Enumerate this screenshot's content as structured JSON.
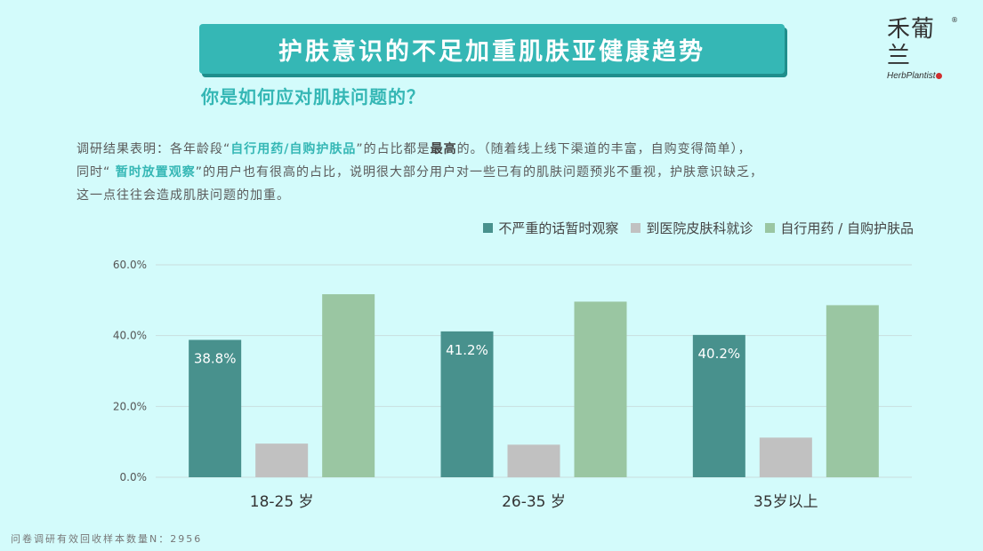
{
  "header": {
    "title": "护肤意识的不足加重肌肤亚健康趋势",
    "subtitle": "你是如何应对肌肤问题的？",
    "logo_mark": "禾葡兰",
    "logo_sub": "HerbPlantist",
    "logo_reg": "®"
  },
  "paragraph": {
    "l1_a": "调研结果表明：各年龄段“",
    "l1_hl": "自行用药/自购护肤品",
    "l1_b": "”的占比都是",
    "l1_bold": "最高",
    "l1_c": "的。（随着线上线下渠道的丰富，自购变得简单），",
    "l2_a": "同时“  ",
    "l2_hl": "暂时放置观察",
    "l2_b": "”的用户也有很高的占比，说明很大部分用户对一些已有的肌肤问题预兆不重视，护肤意识缺乏，",
    "l3": "这一点往往会造成肌肤问题的加重。"
  },
  "footer": "问卷调研有效回收样本数量N：2956",
  "colors": {
    "s1": "#48918d",
    "s2": "#c1c1c1",
    "s3": "#9ac6a2",
    "grid": "#c9dede",
    "accent": "#35b7b5"
  },
  "chart_data": {
    "type": "bar",
    "categories": [
      "18-25 岁",
      "26-35 岁",
      "35岁以上"
    ],
    "series": [
      {
        "name": "不严重的话暂时观察",
        "values": [
          38.8,
          41.2,
          40.2
        ],
        "labels": [
          "38.8%",
          "41.2%",
          "40.2%"
        ]
      },
      {
        "name": "到医院皮肤科就诊",
        "values": [
          9.5,
          9.2,
          11.2
        ]
      },
      {
        "name": "自行用药 / 自购护肤品",
        "values": [
          51.7,
          49.6,
          48.6
        ]
      }
    ],
    "yticks": [
      "0.0%",
      "20.0%",
      "40.0%",
      "60.0%"
    ],
    "ylim": [
      0,
      60
    ],
    "legend_position": "top-right",
    "grid": true
  }
}
